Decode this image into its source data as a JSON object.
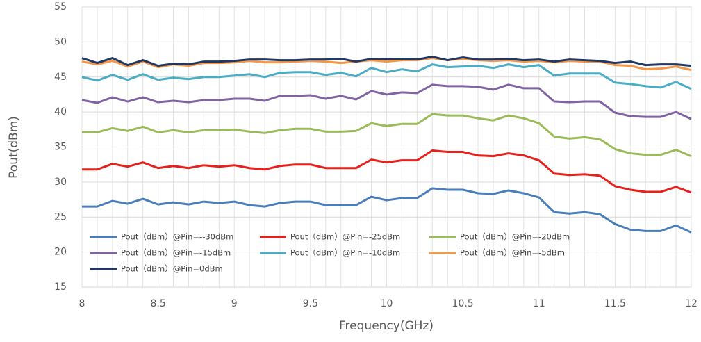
{
  "chart_data": {
    "type": "line",
    "x_label": "Frequency(GHz)",
    "y_label": "Pout(dBm)",
    "x": [
      8.0,
      8.1,
      8.2,
      8.3,
      8.4,
      8.5,
      8.6,
      8.7,
      8.8,
      8.9,
      9.0,
      9.1,
      9.2,
      9.3,
      9.4,
      9.5,
      9.6,
      9.7,
      9.8,
      9.9,
      10.0,
      10.1,
      10.2,
      10.3,
      10.4,
      10.5,
      10.6,
      10.7,
      10.8,
      10.9,
      11.0,
      11.1,
      11.2,
      11.3,
      11.4,
      11.5,
      11.6,
      11.7,
      11.8,
      11.9,
      12.0
    ],
    "xlim": [
      8,
      12
    ],
    "xticks": [
      8,
      8.5,
      9,
      9.5,
      10,
      10.5,
      11,
      11.5,
      12
    ],
    "ylim": [
      15,
      55
    ],
    "yticks": [
      15,
      20,
      25,
      30,
      35,
      40,
      45,
      50,
      55
    ],
    "grid": true,
    "series": [
      {
        "name": "Pout（dBm）@Pin=--30dBm",
        "color": "#4a7ebb",
        "values": [
          26.5,
          26.5,
          27.3,
          26.9,
          27.6,
          26.8,
          27.1,
          26.8,
          27.2,
          27.0,
          27.2,
          26.7,
          26.5,
          27.0,
          27.2,
          27.2,
          26.7,
          26.7,
          26.7,
          27.9,
          27.4,
          27.7,
          27.7,
          29.1,
          28.9,
          28.9,
          28.4,
          28.3,
          28.8,
          28.4,
          27.8,
          25.7,
          25.5,
          25.7,
          25.4,
          24.0,
          23.2,
          23.0,
          23.0,
          23.8,
          22.8
        ]
      },
      {
        "name": "Pout（dBm）@Pin=-25dBm",
        "color": "#e8201c",
        "values": [
          31.8,
          31.8,
          32.6,
          32.2,
          32.8,
          32.0,
          32.3,
          32.0,
          32.4,
          32.2,
          32.4,
          32.0,
          31.8,
          32.3,
          32.5,
          32.5,
          32.0,
          32.0,
          32.0,
          33.2,
          32.8,
          33.1,
          33.1,
          34.5,
          34.3,
          34.3,
          33.8,
          33.7,
          34.1,
          33.8,
          33.1,
          31.2,
          31.0,
          31.1,
          30.9,
          29.4,
          28.9,
          28.6,
          28.6,
          29.3,
          28.5
        ]
      },
      {
        "name": "Pout（dBm）@Pin=-20dBm",
        "color": "#9bbb59",
        "values": [
          37.1,
          37.1,
          37.7,
          37.3,
          37.9,
          37.1,
          37.4,
          37.1,
          37.4,
          37.4,
          37.5,
          37.2,
          37.0,
          37.4,
          37.6,
          37.6,
          37.2,
          37.2,
          37.3,
          38.4,
          38.0,
          38.3,
          38.3,
          39.7,
          39.5,
          39.5,
          39.1,
          38.8,
          39.5,
          39.1,
          38.4,
          36.5,
          36.2,
          36.4,
          36.1,
          34.7,
          34.1,
          33.9,
          33.9,
          34.6,
          33.7
        ]
      },
      {
        "name": "Pout（dBm）@Pin=-15dBm",
        "color": "#8064a2",
        "values": [
          41.7,
          41.3,
          42.1,
          41.5,
          42.1,
          41.4,
          41.6,
          41.4,
          41.7,
          41.7,
          41.9,
          41.9,
          41.6,
          42.3,
          42.3,
          42.4,
          41.9,
          42.3,
          41.8,
          43.0,
          42.5,
          42.8,
          42.7,
          43.9,
          43.7,
          43.7,
          43.6,
          43.2,
          43.9,
          43.4,
          43.4,
          41.5,
          41.4,
          41.5,
          41.5,
          39.9,
          39.4,
          39.3,
          39.3,
          40.0,
          39.0
        ]
      },
      {
        "name": "Pout（dBm）@Pin=-10dBm",
        "color": "#4bacc6",
        "values": [
          45.0,
          44.5,
          45.3,
          44.6,
          45.4,
          44.6,
          44.9,
          44.7,
          45.0,
          45.0,
          45.2,
          45.4,
          45.0,
          45.6,
          45.7,
          45.7,
          45.3,
          45.6,
          45.1,
          46.3,
          45.7,
          46.1,
          45.8,
          46.8,
          46.4,
          46.5,
          46.6,
          46.3,
          46.8,
          46.4,
          46.7,
          45.2,
          45.5,
          45.5,
          45.5,
          44.2,
          44.0,
          43.7,
          43.5,
          44.3,
          43.3
        ]
      },
      {
        "name": "Pout（dBm）@Pin=-5dBm",
        "color": "#f79646",
        "values": [
          47.2,
          46.8,
          47.3,
          46.5,
          47.2,
          46.4,
          46.8,
          46.6,
          47.0,
          47.0,
          47.1,
          47.3,
          47.1,
          47.1,
          47.2,
          47.3,
          47.2,
          47.0,
          47.2,
          47.4,
          47.2,
          47.4,
          47.4,
          47.7,
          47.4,
          47.6,
          47.4,
          47.3,
          47.4,
          47.2,
          47.3,
          47.1,
          47.3,
          47.2,
          47.2,
          46.7,
          46.6,
          46.1,
          46.2,
          46.5,
          46.0
        ]
      },
      {
        "name": "Pout（dBm）@Pin=0dBm",
        "color": "#1f3864",
        "values": [
          47.7,
          47.0,
          47.7,
          46.7,
          47.4,
          46.6,
          46.9,
          46.8,
          47.2,
          47.2,
          47.3,
          47.5,
          47.5,
          47.4,
          47.4,
          47.5,
          47.5,
          47.6,
          47.2,
          47.6,
          47.6,
          47.6,
          47.5,
          47.9,
          47.4,
          47.8,
          47.5,
          47.5,
          47.6,
          47.4,
          47.5,
          47.2,
          47.5,
          47.4,
          47.3,
          47.0,
          47.2,
          46.7,
          46.8,
          46.8,
          46.6
        ]
      }
    ]
  }
}
